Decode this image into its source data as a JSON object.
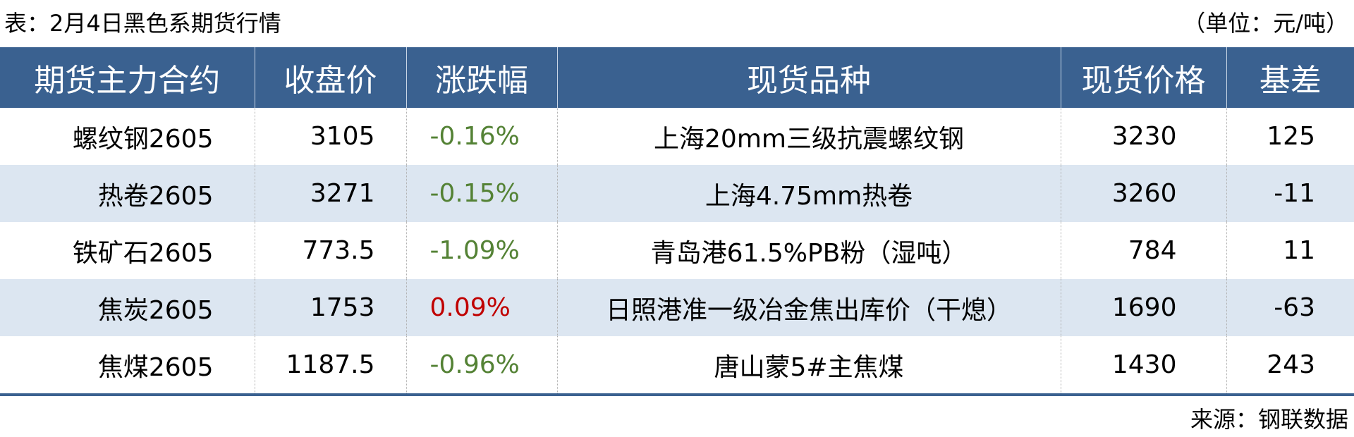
{
  "title": "表：2月4日黑色系期货行情",
  "unit": "（单位：元/吨）",
  "colors": {
    "header_bg": "#3a6190",
    "alt_row_bg": "#dce6f1",
    "down": "#548235",
    "up": "#c00000"
  },
  "headers": [
    "期货主力合约",
    "收盘价",
    "涨跌幅",
    "现货品种",
    "现货价格",
    "基差"
  ],
  "rows": [
    {
      "contract": "螺纹钢2605",
      "close": "3105",
      "change": "-0.16%",
      "direction": "down",
      "spot": "上海20mm三级抗震螺纹钢",
      "spot_price": "3230",
      "basis": "125"
    },
    {
      "contract": "热卷2605",
      "close": "3271",
      "change": "-0.15%",
      "direction": "down",
      "spot": "上海4.75mm热卷",
      "spot_price": "3260",
      "basis": "-11"
    },
    {
      "contract": "铁矿石2605",
      "close": "773.5",
      "change": "-1.09%",
      "direction": "down",
      "spot": "青岛港61.5%PB粉（湿吨）",
      "spot_price": "784",
      "basis": "11"
    },
    {
      "contract": "焦炭2605",
      "close": "1753",
      "change": "0.09%",
      "direction": "up",
      "spot": "日照港准一级冶金焦出库价（干熄）",
      "spot_price": "1690",
      "basis": "-63"
    },
    {
      "contract": "焦煤2605",
      "close": "1187.5",
      "change": "-0.96%",
      "direction": "down",
      "spot": "唐山蒙5#主焦煤",
      "spot_price": "1430",
      "basis": "243"
    }
  ],
  "source": "来源：钢联数据"
}
